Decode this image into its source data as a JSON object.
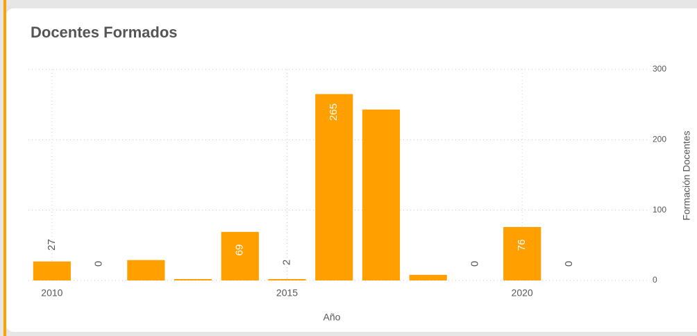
{
  "chart_data": {
    "type": "bar",
    "title": "Docentes Formados",
    "x": [
      2010,
      2011,
      2012,
      2013,
      2014,
      2015,
      2016,
      2017,
      2018,
      2019,
      2020,
      2021
    ],
    "values": [
      27,
      0,
      29,
      2,
      69,
      2,
      265,
      243,
      8,
      0,
      76,
      0
    ],
    "value_labels": [
      27,
      0,
      null,
      null,
      69,
      2,
      265,
      null,
      null,
      0,
      76,
      0
    ],
    "color": "#ffa000",
    "xlim": [
      2009.5,
      2022.7
    ],
    "xticks": [
      2010,
      2015,
      2020
    ],
    "ylim": [
      0,
      300
    ],
    "yticks": [
      0,
      100,
      200,
      300
    ],
    "xlabel": "Año",
    "ylabel": "Formación Docentes",
    "grid": true
  }
}
